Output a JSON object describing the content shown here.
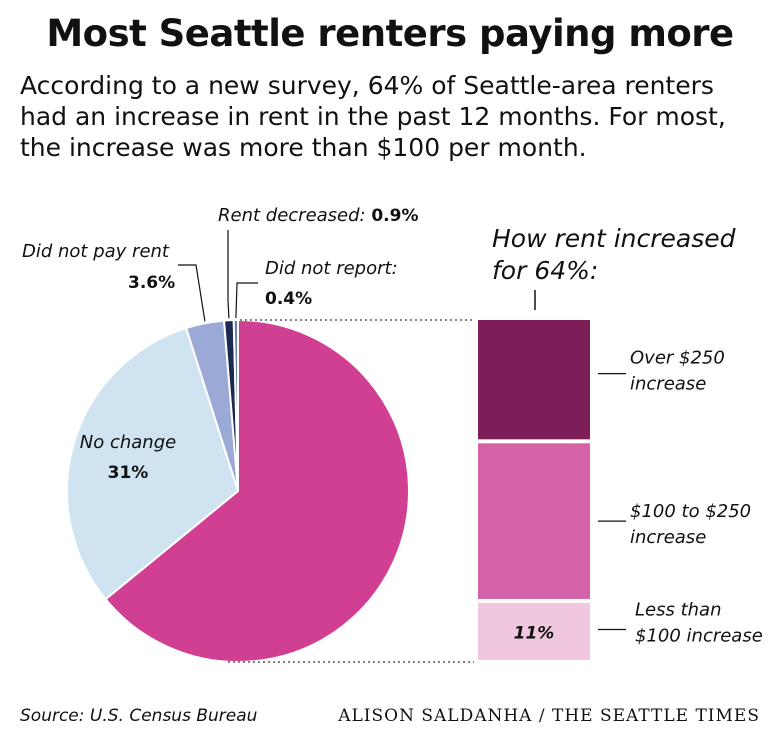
{
  "title": "Most Seattle renters paying more",
  "subtitle": "According to a new survey, 64% of Seattle-area renters had an increase in rent in the past 12 months. For most, the increase was more than $100 per month.",
  "source": "Source: U.S. Census Bureau",
  "credit": "ALISON SALDANHA / THE SEATTLE TIMES",
  "chart_data": [
    {
      "type": "pie",
      "slices": [
        {
          "label": "Rent increased",
          "value": 64.1,
          "color": "#d13f93",
          "shown_value": ""
        },
        {
          "label": "No change",
          "value": 31,
          "color": "#cfe3f1",
          "shown_value": "31%"
        },
        {
          "label": "Did not pay rent",
          "value": 3.6,
          "color": "#9aa9d6",
          "shown_value": "3.6%"
        },
        {
          "label": "Rent decreased:",
          "value": 0.9,
          "color": "#1c2a52",
          "shown_value": "0.9%"
        },
        {
          "label": "Did not report:",
          "value": 0.4,
          "color": "#6a7fae",
          "shown_value": "0.4%"
        }
      ]
    },
    {
      "type": "bar",
      "title": "How rent increased for 64%:",
      "stacked": true,
      "segments": [
        {
          "label": "Over $250 increase",
          "label_lines": [
            "Over $250",
            "increase"
          ],
          "value": 23,
          "color": "#7d1e59",
          "shown_value": ""
        },
        {
          "label": "$100 to $250 increase",
          "label_lines": [
            "$100 to $250",
            "increase"
          ],
          "value": 30,
          "color": "#d462a6",
          "shown_value": ""
        },
        {
          "label": "Less than $100 increase",
          "label_lines": [
            "Less than",
            "$100 increase"
          ],
          "value": 11,
          "color": "#f0c7df",
          "shown_value": "11%"
        }
      ]
    }
  ]
}
